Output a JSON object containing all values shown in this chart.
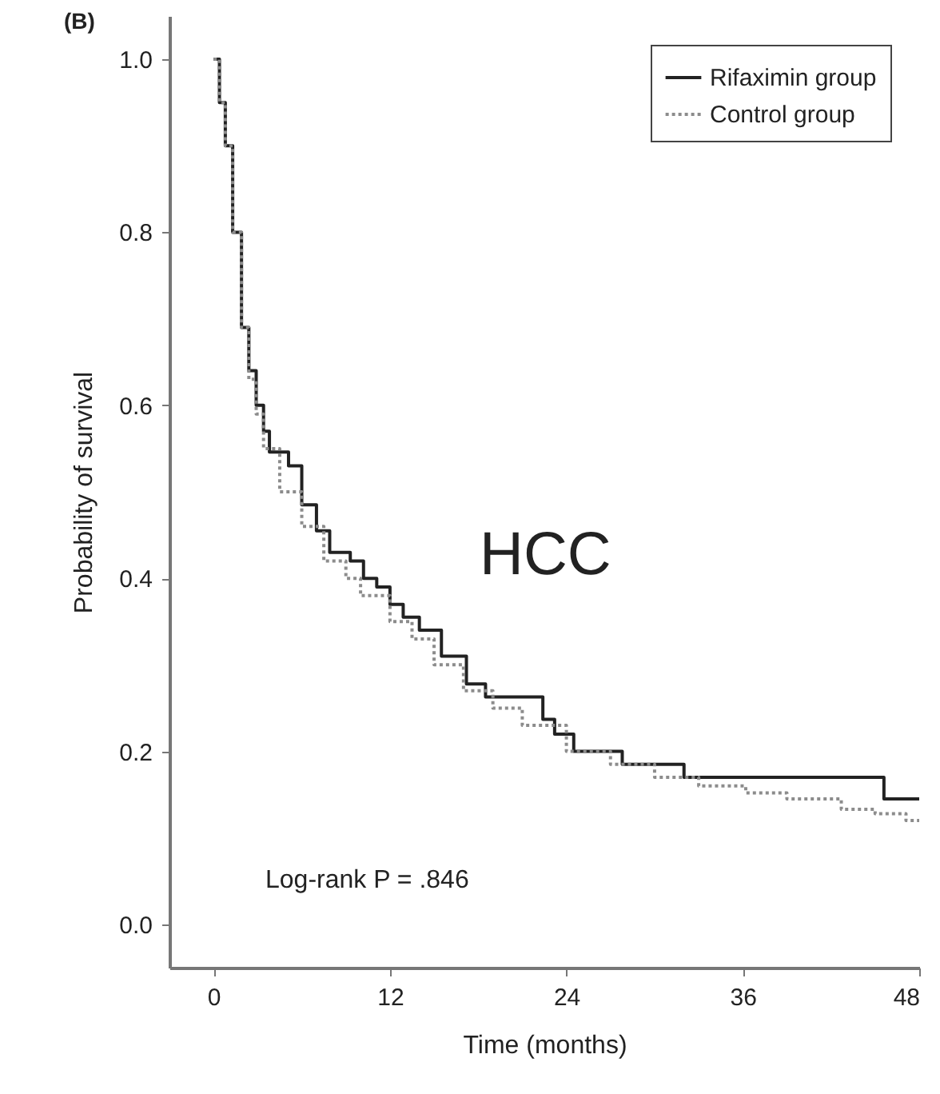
{
  "chart_data": {
    "type": "step",
    "xlabel": "Time (months)",
    "ylabel": "Probability of survival",
    "annotations": [
      "(B)",
      "HCC",
      "Log-rank P = .846"
    ],
    "xlim": [
      -3,
      48
    ],
    "xticks": [
      0,
      12,
      24,
      36,
      48
    ],
    "ylim": [
      -0.05,
      1.05
    ],
    "yticks": [
      {
        "value": 0,
        "label": "0.0"
      },
      {
        "value": 0.2,
        "label": "0.2"
      },
      {
        "value": 0.4,
        "label": "0.4"
      },
      {
        "value": 0.6,
        "label": "0.6"
      },
      {
        "value": 0.8,
        "label": "0.8"
      },
      {
        "value": 1,
        "label": "1.0"
      }
    ],
    "grid": false,
    "legend": "top right",
    "series": [
      {
        "name": "Rifaximin group",
        "color": "#222222",
        "line_style": "solid",
        "x": [
          0,
          0.4,
          0.8,
          1.3,
          1.9,
          2.4,
          2.9,
          3.4,
          3.8,
          5.1,
          6,
          7,
          7.9,
          9.3,
          10.2,
          11.1,
          12,
          12.9,
          14,
          15.5,
          17.2,
          18.5,
          20.9,
          22.4,
          23.2,
          24.5,
          27.8,
          32,
          45.6,
          48
        ],
        "values": [
          1,
          0.95,
          0.9,
          0.8,
          0.69,
          0.64,
          0.6,
          0.57,
          0.546,
          0.53,
          0.485,
          0.455,
          0.43,
          0.42,
          0.4,
          0.39,
          0.37,
          0.355,
          0.34,
          0.31,
          0.278,
          0.263,
          0.263,
          0.237,
          0.22,
          0.2,
          0.185,
          0.17,
          0.145,
          0.145
        ]
      },
      {
        "name": "Control group",
        "color": "#8c8c8c",
        "line_style": "dotted",
        "x": [
          0,
          0.4,
          0.8,
          1.3,
          1.9,
          2.4,
          2.9,
          3.4,
          4.5,
          6,
          7.5,
          9,
          10,
          12,
          13.5,
          15,
          17,
          19,
          21,
          24,
          27,
          30,
          33,
          36.2,
          39,
          42.7,
          45,
          47.1,
          48
        ],
        "values": [
          1,
          0.95,
          0.9,
          0.8,
          0.69,
          0.63,
          0.59,
          0.55,
          0.5,
          0.46,
          0.42,
          0.4,
          0.38,
          0.35,
          0.33,
          0.3,
          0.27,
          0.25,
          0.23,
          0.2,
          0.185,
          0.17,
          0.16,
          0.152,
          0.145,
          0.133,
          0.128,
          0.12,
          0.12
        ]
      }
    ]
  }
}
